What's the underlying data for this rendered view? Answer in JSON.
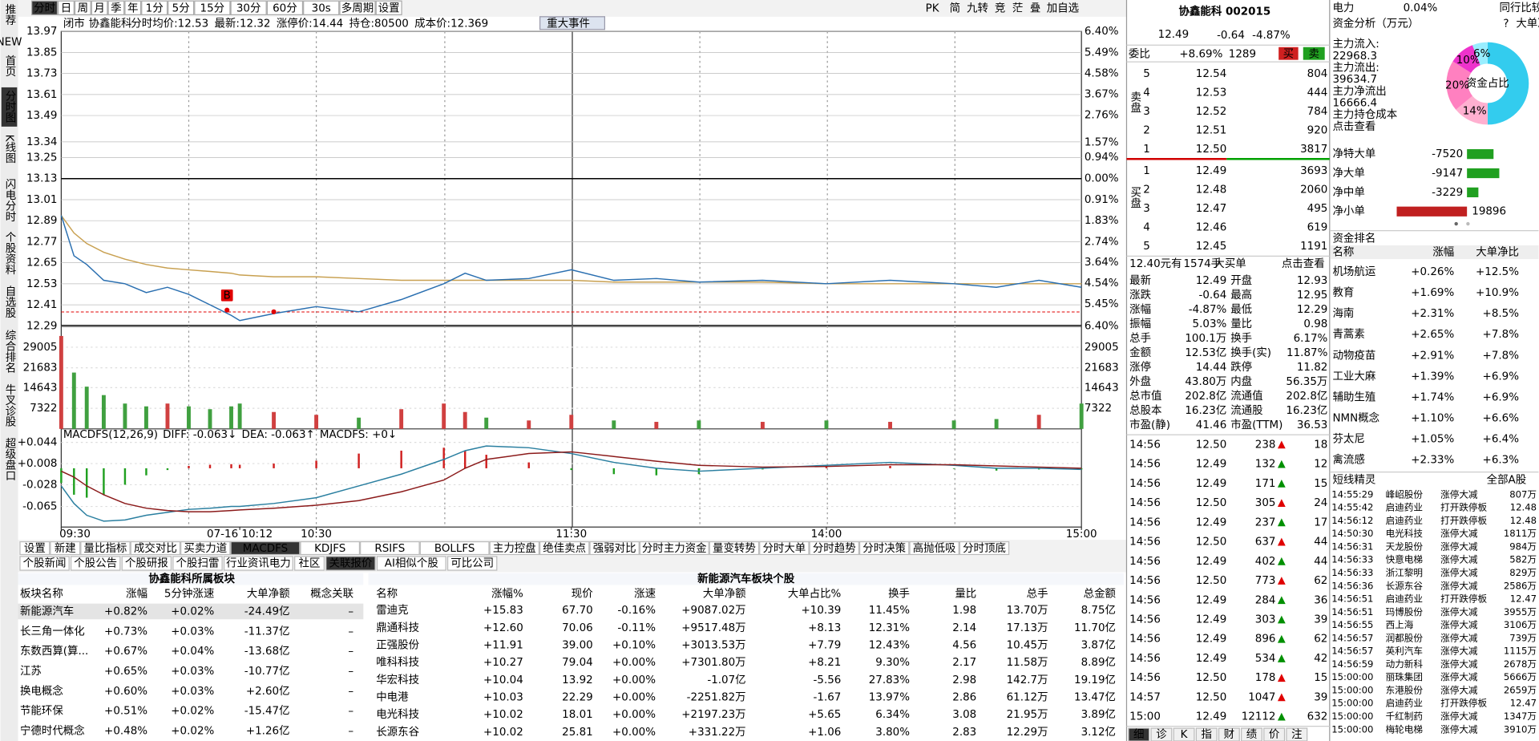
{
  "sidebar": {
    "tabs": [
      "推荐",
      "首页",
      "分时图",
      "K线图",
      "闪电分时",
      "个股资料",
      "自选股",
      "综合排名",
      "牛叉诊股",
      "超级盘口"
    ],
    "badge": "NEW"
  },
  "toolbar": {
    "periods": [
      "分时",
      "日",
      "周",
      "月",
      "季",
      "年",
      "1分",
      "5分",
      "15分",
      "30分",
      "60分",
      "30s",
      "多周期",
      "设置"
    ],
    "right": [
      "PK",
      "简",
      "九转",
      "竞",
      "茫",
      "叠",
      "加自选"
    ]
  },
  "info": {
    "status": "闭市",
    "stock": "协鑫能科",
    "mode": "分时",
    "items": [
      {
        "label": "均价:",
        "value": 12.53
      },
      {
        "label": "最新:",
        "value": 12.32
      },
      {
        "label": "涨停价:",
        "value": 14.44
      },
      {
        "label": "持仓:",
        "value": 80500
      },
      {
        "label": "成本价:",
        "value": 12.369
      }
    ],
    "event": "重大事件"
  },
  "chart_data": [
    {
      "type": "line",
      "x": [
        "09:30",
        "09:33",
        "09:36",
        "09:40",
        "09:45",
        "09:50",
        "09:55",
        "10:00",
        "10:05",
        "10:10",
        "10:12",
        "10:20",
        "10:30",
        "10:40",
        "10:50",
        "11:00",
        "11:05",
        "11:10",
        "11:20",
        "11:30",
        "13:10",
        "13:20",
        "13:30",
        "13:45",
        "14:00",
        "14:15",
        "14:30",
        "14:40",
        "14:50",
        "15:00"
      ],
      "series": [
        {
          "color": "#2a6fb0",
          "values": [
            12.92,
            12.69,
            12.64,
            12.55,
            12.53,
            12.48,
            12.51,
            12.47,
            12.41,
            12.35,
            12.32,
            12.36,
            12.4,
            12.37,
            12.44,
            12.53,
            12.59,
            12.55,
            12.56,
            12.61,
            12.55,
            12.56,
            12.54,
            12.55,
            12.53,
            12.55,
            12.53,
            12.51,
            12.55,
            12.51
          ]
        },
        {
          "color": "#c8a050",
          "values": [
            12.92,
            12.82,
            12.76,
            12.71,
            12.67,
            12.64,
            12.62,
            12.61,
            12.6,
            12.59,
            12.58,
            12.57,
            12.57,
            12.56,
            12.55,
            12.55,
            12.55,
            12.55,
            12.55,
            12.55,
            12.54,
            12.54,
            12.54,
            12.54,
            12.53,
            12.53,
            12.53,
            12.53,
            12.53,
            12.53
          ]
        }
      ],
      "ylim": [
        12.29,
        13.97
      ],
      "yticks": [
        13.97,
        13.85,
        13.73,
        13.61,
        13.49,
        13.34,
        13.25,
        13.13,
        13.01,
        12.89,
        12.77,
        12.65,
        12.53,
        12.41,
        12.29
      ],
      "y2lim": [
        -6.4,
        6.4
      ],
      "y2ticks": [
        {
          "value": 6.4,
          "label": "6.40%"
        },
        {
          "value": 5.49,
          "label": "5.49%"
        },
        {
          "value": 4.58,
          "label": "4.58%"
        },
        {
          "value": 3.67,
          "label": "3.67%"
        },
        {
          "value": 2.76,
          "label": "2.76%"
        },
        {
          "value": 1.57,
          "label": "1.57%"
        },
        {
          "value": 0.94,
          "label": "0.94%"
        },
        {
          "value": 0,
          "label": "0.00%"
        },
        {
          "value": -0.91,
          "label": "0.91%"
        },
        {
          "value": -1.83,
          "label": "1.83%"
        },
        {
          "value": -2.74,
          "label": "2.74%"
        },
        {
          "value": -3.64,
          "label": "3.64%"
        },
        {
          "value": -4.54,
          "label": "4.54%"
        },
        {
          "value": -5.45,
          "label": "5.45%"
        },
        {
          "value": -6.4,
          "label": "6.40%"
        }
      ],
      "xticks": [
        "09:30",
        {
          "value": "10:12",
          "label": "07-16 10:12"
        },
        "10:30",
        "11:30",
        "14:00",
        "15:00"
      ],
      "markers": [
        {
          "x": "10:09",
          "y": 12.38,
          "label": "B"
        },
        {
          "x": "10:20",
          "y": 12.37
        }
      ],
      "grid": true
    },
    {
      "type": "bar",
      "values": [
        33000,
        20000,
        15000,
        12000,
        9000,
        8000,
        9000,
        8000,
        7000,
        8000,
        9000,
        6000,
        5000,
        4000,
        7000,
        9000,
        6000,
        4000,
        3000,
        5000,
        3000,
        2500,
        3000,
        2500,
        3000,
        2500,
        3000,
        3500,
        5000,
        9000
      ],
      "ylim": [
        0,
        33800
      ],
      "yticks": [
        29005,
        21683,
        14643,
        7322
      ]
    },
    {
      "type": "macd",
      "title": [
        "MACDFS(12,26,9)",
        "DIFF: -0.063↓",
        "DEA: -0.063↑",
        "MACDFS: +0↓"
      ],
      "series": [
        {
          "color": "#2a7fa0",
          "values": [
            -0.03,
            -0.06,
            -0.08,
            -0.09,
            -0.088,
            -0.08,
            -0.075,
            -0.07,
            -0.068,
            -0.065,
            -0.065,
            -0.06,
            -0.05,
            -0.03,
            -0.01,
            0.015,
            0.03,
            0.038,
            0.035,
            0.025,
            0.01,
            0.0,
            -0.005,
            0.0,
            0.005,
            0.01,
            0.005,
            0.0,
            0.0,
            -0.002
          ]
        },
        {
          "color": "#8b1a1a",
          "values": [
            -0.005,
            -0.015,
            -0.03,
            -0.045,
            -0.06,
            -0.068,
            -0.072,
            -0.074,
            -0.074,
            -0.072,
            -0.071,
            -0.068,
            -0.063,
            -0.055,
            -0.04,
            -0.02,
            0.0,
            0.015,
            0.025,
            0.028,
            0.02,
            0.012,
            0.005,
            0.002,
            0.003,
            0.006,
            0.006,
            0.004,
            0.002,
            0.0
          ]
        }
      ],
      "bars": [
        -0.025,
        -0.045,
        -0.05,
        -0.045,
        -0.028,
        -0.012,
        -0.003,
        0.004,
        0.006,
        0.007,
        0.006,
        0.008,
        0.013,
        0.025,
        0.03,
        0.035,
        0.03,
        0.023,
        0.01,
        -0.003,
        -0.01,
        -0.012,
        -0.01,
        -0.002,
        0.002,
        0.004,
        -0.001,
        -0.004,
        -0.002,
        -0.002
      ],
      "ylim": [
        -0.1,
        0.067
      ],
      "yticks": [
        {
          "value": 0.044,
          "label": "+0.044"
        },
        {
          "value": 0.008,
          "label": "+0.008"
        },
        -0.028,
        -0.065
      ]
    }
  ],
  "tabs": {
    "indicators": [
      "设置",
      "新建",
      "量比指标",
      "成交对比",
      "买卖力道",
      "MACDFS",
      "KDJFS",
      "RSIFS",
      "BOLLFS",
      "主力控盘",
      "绝佳卖点",
      "强弱对比",
      "分时主力资金",
      "量变转势",
      "分时大单",
      "分时趋势",
      "分时决策",
      "高抛低吸",
      "分时顶底"
    ],
    "info": [
      "个股新闻",
      "个股公告",
      "个股研报",
      "个股扫雷",
      "行业资讯电力",
      "社区",
      "关联报价",
      "AI相似个股",
      "可比公司"
    ]
  },
  "sector_table": {
    "title": "协鑫能科所属板块",
    "headers": [
      "板块名称",
      "涨幅",
      "5分钟涨速",
      "大单净额",
      "概念关联"
    ],
    "rows": [
      [
        "新能源汽车",
        "+0.82%",
        "+0.02%",
        "-24.49亿",
        "–"
      ],
      [
        "长三角一体化",
        "+0.73%",
        "+0.03%",
        "-11.37亿",
        "–"
      ],
      [
        "东数西算(算...",
        "+0.67%",
        "+0.04%",
        "-13.68亿",
        "–"
      ],
      [
        "江苏",
        "+0.65%",
        "+0.03%",
        "-10.77亿",
        "–"
      ],
      [
        "换电概念",
        "+0.60%",
        "+0.03%",
        "+2.60亿",
        "–"
      ],
      [
        "节能环保",
        "+0.51%",
        "+0.02%",
        "-15.47亿",
        "–"
      ],
      [
        "宁德时代概念",
        "+0.48%",
        "+0.02%",
        "+1.26亿",
        "–"
      ]
    ]
  },
  "stock_table": {
    "title": "新能源汽车板块个股",
    "headers": [
      "名称",
      "涨幅%",
      "现价",
      "涨速",
      "大单净额",
      "大单占比%",
      "换手",
      "量比",
      "总手",
      "总金额"
    ],
    "rows": [
      [
        "雷迪克",
        "+15.83",
        "67.70",
        "-0.16%",
        "+9087.02万",
        "+10.39",
        "11.45%",
        "1.98",
        "13.70万",
        "8.75亿"
      ],
      [
        "鼎通科技",
        "+12.60",
        "70.06",
        "-0.11%",
        "+9517.48万",
        "+8.13",
        "12.31%",
        "2.14",
        "17.13万",
        "11.70亿"
      ],
      [
        "正强股份",
        "+11.91",
        "39.00",
        "+0.10%",
        "+3013.53万",
        "+7.79",
        "12.43%",
        "4.56",
        "10.45万",
        "3.87亿"
      ],
      [
        "唯科科技",
        "+10.27",
        "79.04",
        "+0.00%",
        "+7301.80万",
        "+8.21",
        "9.30%",
        "2.17",
        "11.58万",
        "8.89亿"
      ],
      [
        "华宏科技",
        "+10.04",
        "13.92",
        "+0.00%",
        "-1.07亿",
        "-5.56",
        "27.83%",
        "2.98",
        "142.7万",
        "19.19亿"
      ],
      [
        "中电港",
        "+10.03",
        "22.29",
        "+0.00%",
        "-2251.82万",
        "-1.67",
        "13.97%",
        "2.86",
        "61.12万",
        "13.47亿"
      ],
      [
        "电光科技",
        "+10.02",
        "18.01",
        "+0.00%",
        "+2197.23万",
        "+5.65",
        "6.34%",
        "3.08",
        "21.95万",
        "3.89亿"
      ],
      [
        "长源东谷",
        "+10.02",
        "25.81",
        "+0.00%",
        "+331.22万",
        "+1.06",
        "3.80%",
        "2.83",
        "12.29万",
        "3.12亿"
      ]
    ]
  },
  "quote": {
    "title": "协鑫能科 002015",
    "price": "12.49",
    "change": "-0.64",
    "pct": "-4.87%",
    "ratio_label": "委比",
    "ratio": "+8.69%",
    "diff": "1289",
    "buy": "买",
    "sell": "卖",
    "sell_label": "卖盘",
    "buy_label": "买盘",
    "asks": [
      [
        "5",
        "12.54",
        "804"
      ],
      [
        "4",
        "12.53",
        "444"
      ],
      [
        "3",
        "12.52",
        "784"
      ],
      [
        "2",
        "12.51",
        "920"
      ],
      [
        "1",
        "12.50",
        "3817"
      ]
    ],
    "bids": [
      [
        "1",
        "12.49",
        "3693"
      ],
      [
        "2",
        "12.48",
        "2060"
      ],
      [
        "3",
        "12.47",
        "495"
      ],
      [
        "4",
        "12.46",
        "619"
      ],
      [
        "5",
        "12.45",
        "1191"
      ]
    ],
    "big_order": [
      "12.40元有",
      "1574手",
      "大买单",
      "点击查看"
    ],
    "stats": [
      [
        "最新",
        "12.49",
        "开盘",
        "12.93"
      ],
      [
        "涨跌",
        "-0.64",
        "最高",
        "12.95"
      ],
      [
        "涨幅",
        "-4.87%",
        "最低",
        "12.29"
      ],
      [
        "振幅",
        "5.03%",
        "量比",
        "0.98"
      ],
      [
        "总手",
        "100.1万",
        "换手",
        "6.17%"
      ],
      [
        "金额",
        "12.53亿",
        "换手(实)",
        "11.87%"
      ],
      [
        "涨停",
        "14.44",
        "跌停",
        "11.82"
      ],
      [
        "外盘",
        "43.80万",
        "内盘",
        "56.35万"
      ],
      [
        "总市值",
        "202.8亿",
        "流通值",
        "202.8亿"
      ],
      [
        "总股本",
        "16.23亿",
        "流通股",
        "16.23亿"
      ],
      [
        "市盈(静)",
        "41.46",
        "市盈(TTM)",
        "36.53"
      ]
    ],
    "ticks": [
      [
        "14:56",
        "12.50",
        "238",
        "18"
      ],
      [
        "14:56",
        "12.49",
        "132",
        "12"
      ],
      [
        "14:56",
        "12.49",
        "171",
        "15"
      ],
      [
        "14:56",
        "12.50",
        "305",
        "24"
      ],
      [
        "14:56",
        "12.49",
        "237",
        "17"
      ],
      [
        "14:56",
        "12.50",
        "637",
        "44"
      ],
      [
        "14:56",
        "12.49",
        "402",
        "44"
      ],
      [
        "14:56",
        "12.50",
        "773",
        "62"
      ],
      [
        "14:56",
        "12.49",
        "284",
        "36"
      ],
      [
        "14:56",
        "12.49",
        "303",
        "39"
      ],
      [
        "14:56",
        "12.49",
        "896",
        "62"
      ],
      [
        "14:56",
        "12.49",
        "534",
        "42"
      ],
      [
        "14:56",
        "12.50",
        "178",
        "15"
      ],
      [
        "14:57",
        "12.50",
        "1047",
        "39"
      ],
      [
        "15:00",
        "12.49",
        "12112",
        "632"
      ]
    ],
    "bottom_tabs": [
      "细",
      "诊",
      "K",
      "指",
      "财",
      "绩",
      "价",
      "注"
    ]
  },
  "side": {
    "industry": "电力",
    "industry_pct": "0.04%",
    "compare": "同行比较",
    "fund_title": "资金分析（万元）",
    "help": "?",
    "net_ratio": "大单净比",
    "flows": [
      "主力流入:",
      "22968.3",
      "主力流出:",
      "39634.7",
      "主力净流出",
      "16666.4",
      "主力持仓成本",
      "点击查看"
    ],
    "pie": {
      "center": "资金占比",
      "values": [
        50,
        14,
        20,
        10,
        6
      ],
      "value_labels": [
        null,
        "14%",
        "20%",
        "10%",
        "6%"
      ],
      "colors": [
        "#33ccee",
        "#ffb0d0",
        "#ff80c0",
        "#ee33cc",
        "#99eeff"
      ]
    },
    "net": {
      "labels": [
        "净特大单",
        "净大单",
        "净中单",
        "净小单"
      ],
      "values": [
        -7520,
        -9147,
        -3229,
        19896
      ]
    },
    "rank": {
      "title": "资金排名",
      "headers": [
        "名称",
        "涨幅",
        "大单净比"
      ],
      "rows": [
        [
          "机场航运",
          "+0.26%",
          "+12.5%"
        ],
        [
          "教育",
          "+1.69%",
          "+10.9%"
        ],
        [
          "海南",
          "+2.31%",
          "+8.5%"
        ],
        [
          "青蒿素",
          "+2.65%",
          "+7.8%"
        ],
        [
          "动物疫苗",
          "+2.91%",
          "+7.8%"
        ],
        [
          "工业大麻",
          "+1.39%",
          "+6.9%"
        ],
        [
          "辅助生殖",
          "+1.74%",
          "+6.9%"
        ],
        [
          "NMN概念",
          "+1.10%",
          "+6.6%"
        ],
        [
          "芬太尼",
          "+1.05%",
          "+6.4%"
        ],
        [
          "禽流感",
          "+2.33%",
          "+6.3%"
        ]
      ]
    },
    "elves": {
      "title": "短线精灵",
      "scope": "全部A股",
      "rows": [
        [
          "14:55:29",
          "峰岹股份",
          "涨停大减",
          "807万"
        ],
        [
          "14:55:42",
          "启迪药业",
          "打开跌停板",
          "12.48"
        ],
        [
          "14:56:12",
          "启迪药业",
          "打开跌停板",
          "12.48"
        ],
        [
          "14:50:30",
          "电光科技",
          "涨停大减",
          "1811万"
        ],
        [
          "14:56:31",
          "天龙股份",
          "涨停大减",
          "984万"
        ],
        [
          "14:56:33",
          "快意电梯",
          "涨停大减",
          "582万"
        ],
        [
          "14:56:33",
          "浙江黎明",
          "涨停大减",
          "829万"
        ],
        [
          "14:56:36",
          "长源东谷",
          "涨停大减",
          "2586万"
        ],
        [
          "14:56:51",
          "启迪药业",
          "打开跌停板",
          "12.47"
        ],
        [
          "14:56:51",
          "玛博股份",
          "涨停大减",
          "3955万"
        ],
        [
          "14:56:55",
          "西上海",
          "涨停大减",
          "3106万"
        ],
        [
          "14:56:57",
          "润都股份",
          "涨停大减",
          "739万"
        ],
        [
          "14:56:57",
          "英利汽车",
          "涨停大减",
          "1115万"
        ],
        [
          "14:56:59",
          "动力新科",
          "涨停大减",
          "2678万"
        ],
        [
          "15:00:00",
          "丽珠集团",
          "涨停大减",
          "5666万"
        ],
        [
          "15:00:00",
          "东港股份",
          "涨停大减",
          "2659万"
        ],
        [
          "15:00:00",
          "启迪药业",
          "打开跌停板",
          "12.47"
        ],
        [
          "15:00:00",
          "千红制药",
          "涨停大减",
          "1347万"
        ],
        [
          "15:00:00",
          "梅轮电梯",
          "涨停大减",
          "3910万"
        ]
      ]
    }
  }
}
